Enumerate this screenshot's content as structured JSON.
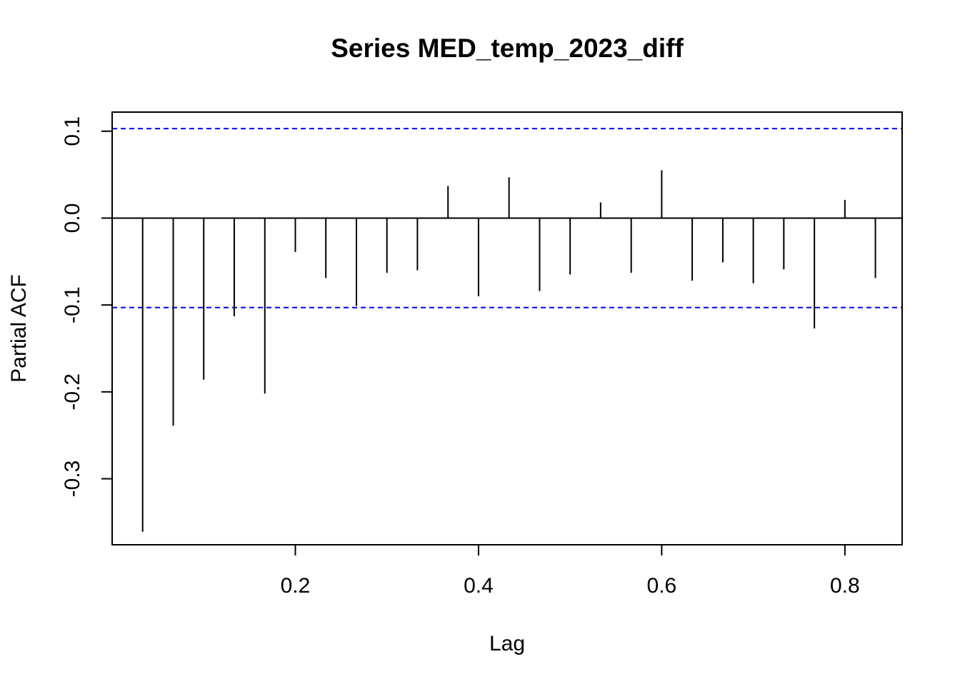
{
  "chart_data": {
    "type": "bar",
    "title": "Series  MED_temp_2023_diff",
    "xlabel": "Lag",
    "ylabel": "Partial ACF",
    "x_ticks": [
      {
        "value": 0.2,
        "label": "0.2"
      },
      {
        "value": 0.4,
        "label": "0.4"
      },
      {
        "value": 0.6,
        "label": "0.6"
      },
      {
        "value": 0.8,
        "label": "0.8"
      }
    ],
    "y_ticks": [
      {
        "value": -0.3,
        "label": "-0.3"
      },
      {
        "value": -0.2,
        "label": "-0.2"
      },
      {
        "value": -0.1,
        "label": "-0.1"
      },
      {
        "value": 0.0,
        "label": "0.0"
      },
      {
        "value": 0.1,
        "label": "0.1"
      }
    ],
    "xlim": [
      0.0,
      0.8625
    ],
    "ylim": [
      -0.376,
      0.122
    ],
    "confidence_bound": 0.103,
    "confidence_color": "#0000ff",
    "bar_color": "#000000",
    "grid": false,
    "lags": [
      0.0333,
      0.0667,
      0.1,
      0.1333,
      0.1667,
      0.2,
      0.2333,
      0.2667,
      0.3,
      0.3333,
      0.3667,
      0.4,
      0.4333,
      0.4667,
      0.5,
      0.5333,
      0.5667,
      0.6,
      0.6333,
      0.6667,
      0.7,
      0.7333,
      0.7667,
      0.8,
      0.8333
    ],
    "values": [
      -0.361,
      -0.239,
      -0.186,
      -0.113,
      -0.202,
      -0.039,
      -0.069,
      -0.101,
      -0.063,
      -0.06,
      0.037,
      -0.09,
      0.047,
      -0.084,
      -0.065,
      0.018,
      -0.063,
      0.055,
      -0.072,
      -0.051,
      -0.075,
      -0.059,
      -0.127,
      0.021,
      -0.069
    ]
  }
}
